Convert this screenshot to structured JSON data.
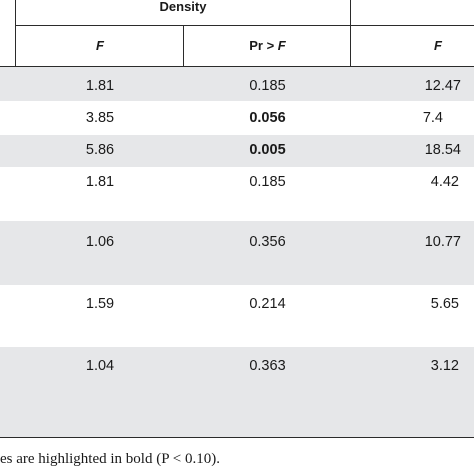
{
  "header": {
    "group_label": "Density",
    "col_f_label": "F",
    "col_pr_prefix": "Pr > ",
    "col_pr_var": "F",
    "col_f2_label": "F"
  },
  "rows": [
    {
      "f": "1.81",
      "pr": "0.185",
      "pr_bold": false,
      "f2": "12.47"
    },
    {
      "f": "3.85",
      "pr": "0.056",
      "pr_bold": true,
      "f2": "7.4"
    },
    {
      "f": "5.86",
      "pr": "0.005",
      "pr_bold": true,
      "f2": "18.54"
    },
    {
      "f": "1.81",
      "pr": "0.185",
      "pr_bold": false,
      "f2": "4.42"
    },
    {
      "f": "1.06",
      "pr": "0.356",
      "pr_bold": false,
      "f2": "10.77"
    },
    {
      "f": "1.59",
      "pr": "0.214",
      "pr_bold": false,
      "f2": "5.65"
    },
    {
      "f": "1.04",
      "pr": "0.363",
      "pr_bold": false,
      "f2": "3.12"
    }
  ],
  "footnote": "es are highlighted in bold (P < 0.10)."
}
